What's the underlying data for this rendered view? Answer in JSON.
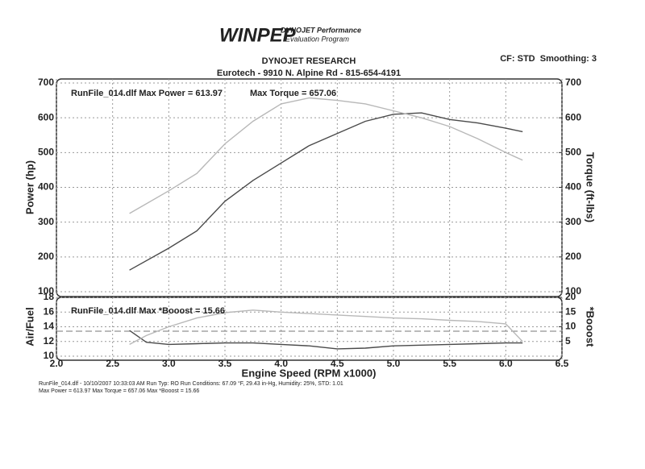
{
  "header": {
    "logo": "WINPEP",
    "logo_subtitle": [
      "DYNOJET Performance",
      "Evaluation Program"
    ],
    "company": "DYNOJET RESEARCH",
    "address": "Eurotech - 9910 N. Alpine Rd - 815-654-4191",
    "settings": "CF: STD  Smoothing: 3"
  },
  "chart_data": [
    {
      "type": "line",
      "ylabel": "Power (hp)",
      "y2label": "Torque (ft-lbs)",
      "annotations": [
        "RunFile_014.dlf Max Power = 613.97",
        "Max Torque = 657.06"
      ],
      "x": [
        2.65,
        3.0,
        3.25,
        3.5,
        3.75,
        4.0,
        4.25,
        4.5,
        4.75,
        5.0,
        5.25,
        5.5,
        5.75,
        6.0,
        6.15
      ],
      "series": [
        {
          "name": "Power",
          "color": "#4a4a4a",
          "axis": "y",
          "values": [
            162,
            225,
            275,
            360,
            420,
            470,
            520,
            555,
            590,
            610,
            613.97,
            595,
            585,
            570,
            560
          ]
        },
        {
          "name": "Torque",
          "color": "#b8b8b8",
          "axis": "y2",
          "values": [
            325,
            390,
            440,
            525,
            590,
            640,
            657.06,
            650,
            640,
            620,
            600,
            575,
            540,
            500,
            478
          ]
        }
      ],
      "xlim": [
        2,
        6.5
      ],
      "xticks": [
        2,
        2.5,
        3,
        3.5,
        4,
        4.5,
        5,
        5.5,
        6,
        6.5
      ],
      "ylim": [
        100,
        700
      ],
      "yticks": [
        100,
        200,
        300,
        400,
        500,
        600,
        700
      ],
      "y2lim": [
        100,
        700
      ],
      "y2ticks": [
        100,
        200,
        300,
        400,
        500,
        600,
        700
      ],
      "grid": true
    },
    {
      "type": "line",
      "ylabel": "Air/Fuel",
      "y2label": "*Booost",
      "xlabel": "Engine Speed (RPM x1000)",
      "annotations": [
        "RunFile_014.dlf Max *Booost = 15.66"
      ],
      "x": [
        2.65,
        2.8,
        3.0,
        3.25,
        3.5,
        3.75,
        4.0,
        4.25,
        4.5,
        4.75,
        5.0,
        5.25,
        5.5,
        5.75,
        6.0,
        6.15
      ],
      "series": [
        {
          "name": "Air/Fuel",
          "color": "#4a4a4a",
          "axis": "y",
          "values": [
            13.5,
            11.9,
            11.6,
            11.7,
            11.8,
            11.8,
            11.6,
            11.4,
            11.0,
            11.1,
            11.4,
            11.5,
            11.6,
            11.7,
            11.8,
            11.8
          ]
        },
        {
          "name": "*Booost",
          "color": "#b8b8b8",
          "axis": "y2",
          "values": [
            4,
            7,
            10,
            13,
            14.8,
            15.66,
            15,
            14.5,
            14,
            13.5,
            13,
            12.7,
            12.2,
            11.8,
            11,
            5
          ]
        }
      ],
      "reference_line": 13.4,
      "xlim": [
        2,
        6.5
      ],
      "xticks": [
        {
          "value": 2,
          "label": "2.0"
        },
        {
          "value": 2.5,
          "label": "2.5"
        },
        {
          "value": 3,
          "label": "3.0"
        },
        {
          "value": 3.5,
          "label": "3.5"
        },
        {
          "value": 4,
          "label": "4.0"
        },
        {
          "value": 4.5,
          "label": "4.5"
        },
        {
          "value": 5,
          "label": "5.0"
        },
        {
          "value": 5.5,
          "label": "5.5"
        },
        {
          "value": 6,
          "label": "6.0"
        },
        {
          "value": 6.5,
          "label": "6.5"
        }
      ],
      "ylim": [
        10,
        18
      ],
      "yticks": [
        10,
        12,
        14,
        16,
        18
      ],
      "y2lim": [
        0,
        20
      ],
      "y2ticks": [
        5,
        10,
        15,
        20
      ],
      "grid": true
    }
  ],
  "footer": [
    "RunFile_014.dlf - 10/10/2007 10:33:03 AM  Run Typ: RO  Run Conditions: 67.09 °F, 29.43 in-Hg, Humidity: 25%, STD: 1.01",
    "Max Power = 613.97  Max Torque = 657.06  Max *Booost = 15.66"
  ]
}
